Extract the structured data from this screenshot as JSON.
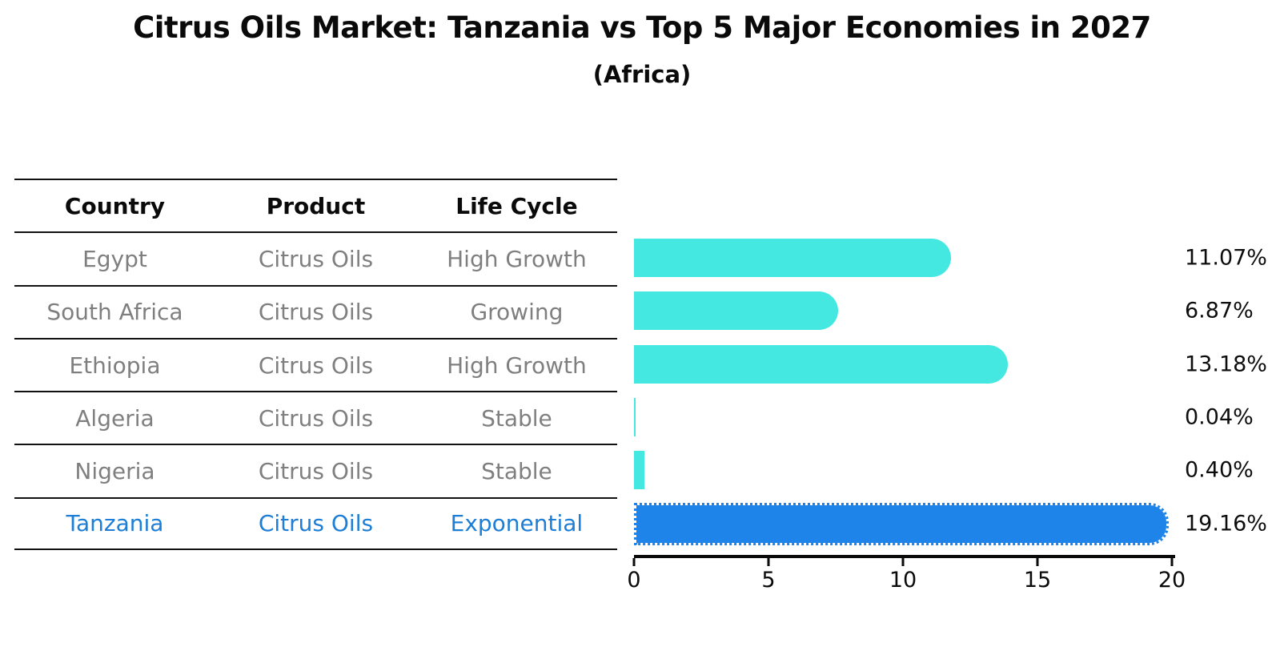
{
  "title": "Citrus Oils Market: Tanzania vs Top 5 Major Economies in 2027",
  "subtitle": "(Africa)",
  "table": {
    "headers": [
      "Country",
      "Product",
      "Life Cycle"
    ],
    "rows": [
      {
        "country": "Egypt",
        "product": "Citrus Oils",
        "life_cycle": "High Growth",
        "highlight": false
      },
      {
        "country": "South Africa",
        "product": "Citrus Oils",
        "life_cycle": "Growing",
        "highlight": false
      },
      {
        "country": "Ethiopia",
        "product": "Citrus Oils",
        "life_cycle": "High Growth",
        "highlight": false
      },
      {
        "country": "Algeria",
        "product": "Citrus Oils",
        "life_cycle": "Stable",
        "highlight": false
      },
      {
        "country": "Nigeria",
        "product": "Citrus Oils",
        "life_cycle": "Stable",
        "highlight": false
      },
      {
        "country": "Tanzania",
        "product": "Citrus Oils",
        "life_cycle": "Exponential",
        "highlight": true
      }
    ]
  },
  "chart_data": {
    "type": "bar",
    "orientation": "horizontal",
    "title": "Citrus Oils Market: Tanzania vs Top 5 Major Economies in 2027 (Africa)",
    "categories": [
      "Egypt",
      "South Africa",
      "Ethiopia",
      "Algeria",
      "Nigeria",
      "Tanzania"
    ],
    "values": [
      11.07,
      6.87,
      13.18,
      0.04,
      0.4,
      19.16
    ],
    "value_labels": [
      "11.07%",
      "6.87%",
      "13.18%",
      "0.04%",
      "0.40%",
      "19.16%"
    ],
    "xlim": [
      0,
      20
    ],
    "xticks": [
      0,
      5,
      10,
      15,
      20
    ],
    "grid": false,
    "legend": false,
    "highlight_index": 5
  },
  "colors": {
    "default_bar": "#45e8e1",
    "highlight_bar": "#1e84ea",
    "highlight_text": "#1c7ed6",
    "muted_text": "#7f7f7f",
    "text": "#0a0a0a"
  }
}
